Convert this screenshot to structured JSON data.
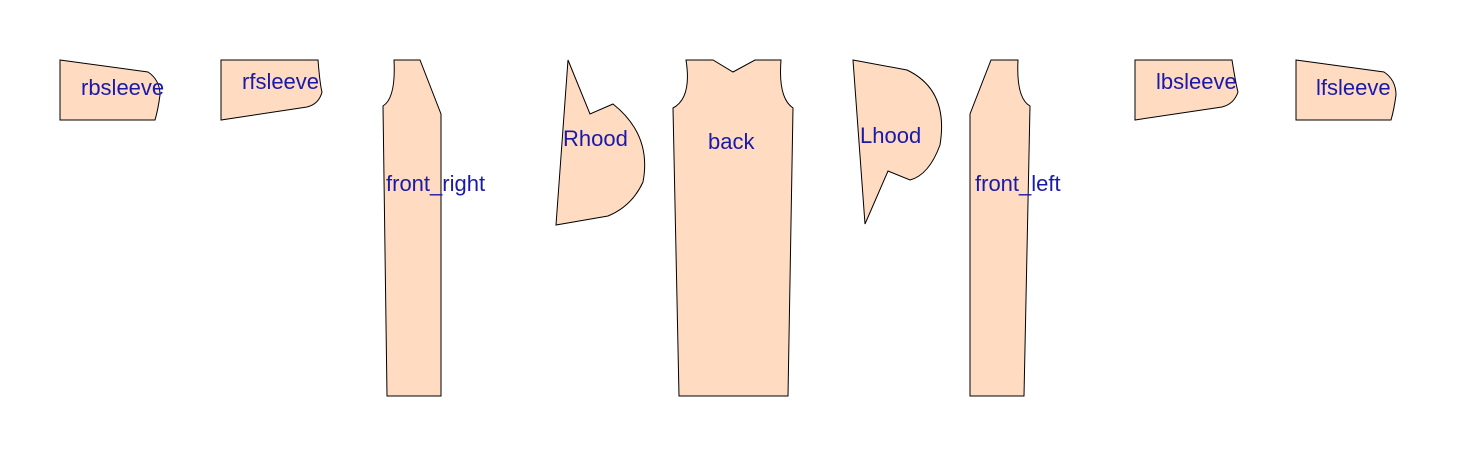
{
  "colors": {
    "piece_fill": "#ffdbc2",
    "piece_outline": "#000000",
    "label_text": "#1a1aa8",
    "background": "#ffffff"
  },
  "pieces": {
    "rbsleeve": {
      "label": "rbsleeve"
    },
    "rfsleeve": {
      "label": "rfsleeve"
    },
    "front_right": {
      "label": "front_right"
    },
    "rhood": {
      "label": "Rhood"
    },
    "back": {
      "label": "back"
    },
    "lhood": {
      "label": "Lhood"
    },
    "front_left": {
      "label": "front_left"
    },
    "lbsleeve": {
      "label": "lbsleeve"
    },
    "lfsleeve": {
      "label": "lfsleeve"
    }
  }
}
